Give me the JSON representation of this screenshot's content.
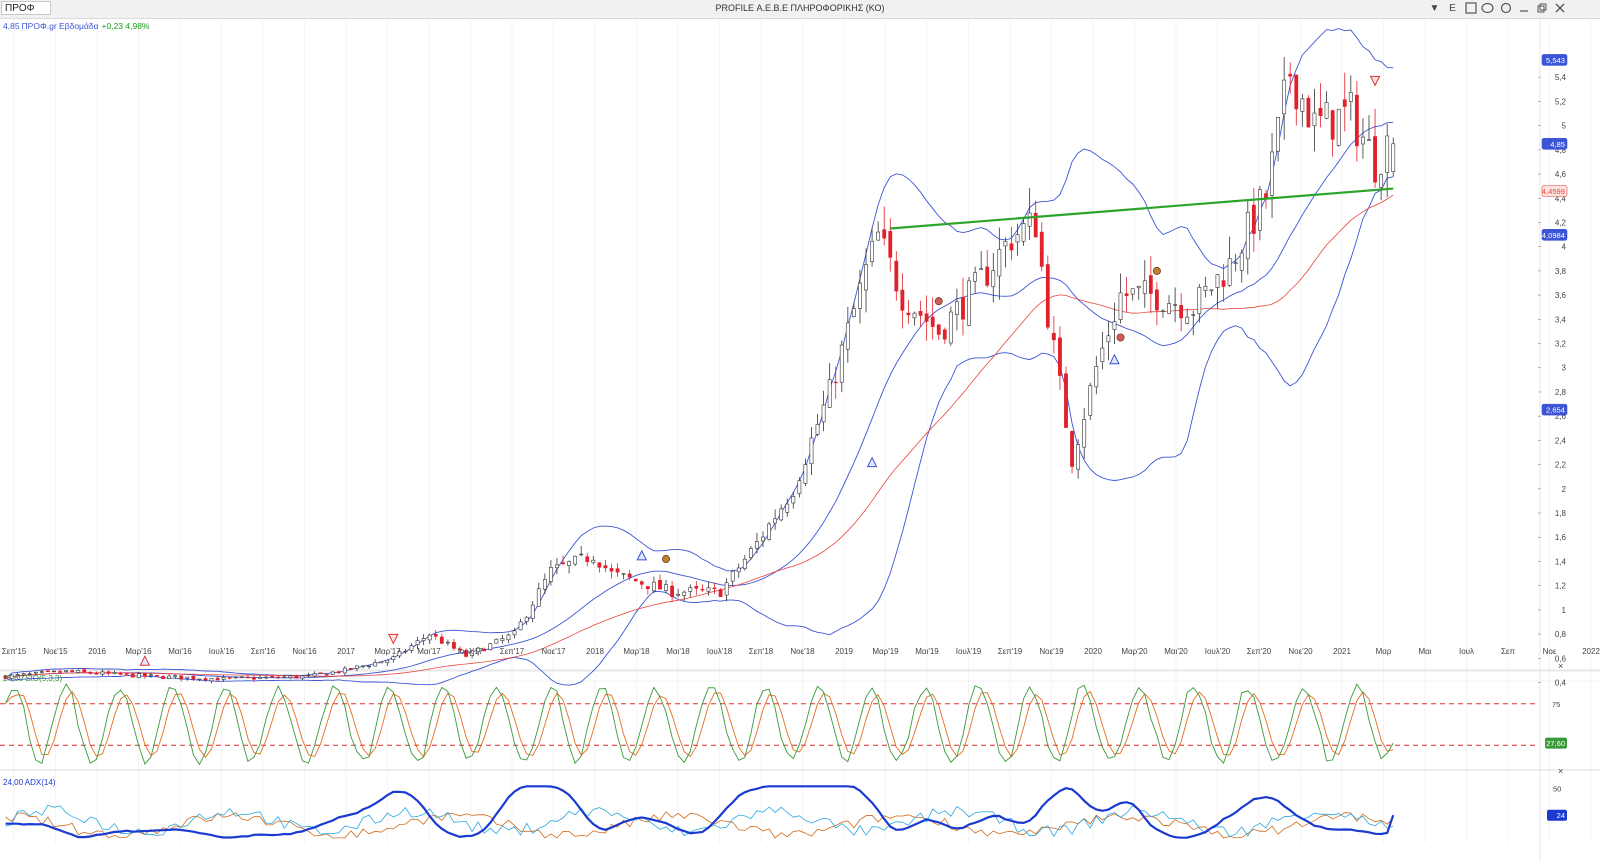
{
  "window": {
    "title": "PROFILE Α.Ε.Β.Ε ΠΛΗΡΟΦΟΡΙΚΗΣ (ΚΟ)",
    "symbol_input": "ΠΡΟΦ",
    "buttons": [
      "▼",
      "E"
    ]
  },
  "price_header": {
    "value": "4,85",
    "name": "ΠΡΟΦ.gr Εβδομάδα",
    "change": "+0,23 4,98%",
    "name_color": "#3c55d6",
    "change_color": "#1a9a1a"
  },
  "chart_data": {
    "type": "candlestick",
    "x_labels": [
      "Σεπ'15",
      "Νοε'15",
      "2016",
      "Μαρ'16",
      "Μαι'16",
      "Ιουλ'16",
      "Σεπ'16",
      "Νοε'16",
      "2017",
      "Μαρ'17",
      "Μαι'17",
      "Ιουλ'17",
      "Σεπ'17",
      "Νοε'17",
      "2018",
      "Μαρ'18",
      "Μαι'18",
      "Ιουλ'18",
      "Σεπ'18",
      "Νοε'18",
      "2019",
      "Μαρ'19",
      "Μαι'19",
      "Ιουλ'19",
      "Σεπ'19",
      "Νοε'19",
      "2020",
      "Μαρ'20",
      "Μαι'20",
      "Ιουλ'20",
      "Σεπ'20",
      "Νοε'20",
      "2021",
      "Μαρ",
      "Μαι",
      "Ιουλ",
      "Σεπ",
      "Νοε",
      "2022"
    ],
    "y_ticks": [
      "0,4",
      "0,6",
      "0,8",
      "1",
      "1,2",
      "1,4",
      "1,6",
      "1,8",
      "2",
      "2,2",
      "2,4",
      "2,6",
      "2,8",
      "3",
      "3,2",
      "3,4",
      "3,6",
      "3,8",
      "4",
      "4,2",
      "4,4",
      "4,6",
      "4,8",
      "5",
      "5,2",
      "5,4"
    ],
    "ylim": [
      0.2,
      5.6
    ],
    "price_path": [
      [
        0,
        0.45
      ],
      [
        10,
        0.49
      ],
      [
        24,
        0.45
      ],
      [
        36,
        0.43
      ],
      [
        50,
        0.45
      ],
      [
        56,
        0.5
      ],
      [
        64,
        0.6
      ],
      [
        70,
        0.8
      ],
      [
        76,
        0.62
      ],
      [
        84,
        0.8
      ],
      [
        90,
        1.32
      ],
      [
        97,
        1.45
      ],
      [
        100,
        1.3
      ],
      [
        110,
        1.15
      ],
      [
        118,
        1.15
      ],
      [
        124,
        1.55
      ],
      [
        130,
        2.0
      ],
      [
        136,
        2.8
      ],
      [
        142,
        3.8
      ],
      [
        144,
        4.08
      ],
      [
        148,
        3.6
      ],
      [
        154,
        3.3
      ],
      [
        160,
        3.65
      ],
      [
        166,
        4.08
      ],
      [
        170,
        4.2
      ],
      [
        172,
        3.45
      ],
      [
        176,
        2.25
      ],
      [
        180,
        3.0
      ],
      [
        184,
        3.6
      ],
      [
        190,
        3.6
      ],
      [
        196,
        3.5
      ],
      [
        202,
        3.85
      ],
      [
        208,
        4.42
      ],
      [
        212,
        5.45
      ],
      [
        216,
        5.0
      ],
      [
        222,
        5.1
      ],
      [
        226,
        4.7
      ],
      [
        228,
        4.85
      ]
    ],
    "candles_per_year": 52,
    "start_date": "2015-09",
    "last_close": "4,85",
    "value_badges": [
      {
        "label": "5,543",
        "value": 5.543,
        "color": "#3c55d6"
      },
      {
        "label": "4,85",
        "value": 4.85,
        "color": "#3c55d6"
      },
      {
        "label": "4,4599",
        "value": 4.4599,
        "color": "#e8473d"
      },
      {
        "label": "4,0984",
        "value": 4.0984,
        "color": "#3c55d6"
      },
      {
        "label": "2,654",
        "value": 2.654,
        "color": "#3c55d6"
      }
    ],
    "trendline": {
      "from": [
        146,
        4.15
      ],
      "to": [
        229,
        4.48
      ],
      "color": "#2aa52a"
    },
    "panels": [
      {
        "label": "27,60 StO(5,3,3)",
        "value_badge": "27,60",
        "levels": [
          "75"
        ]
      },
      {
        "label": "24,00 ADX(14)",
        "value_badge": "24",
        "levels": [
          "50"
        ]
      }
    ],
    "colors": {
      "bollinger": "#3c55d6",
      "ma": "#e8473d",
      "bull": "#ffffff",
      "bear": "#e0202a",
      "stoch_k": "#3a9a3a",
      "stoch_d": "#e07020",
      "adx": "#1a3ad0",
      "di_plus": "#2aa8e0",
      "di_minus": "#d06a1a"
    }
  }
}
